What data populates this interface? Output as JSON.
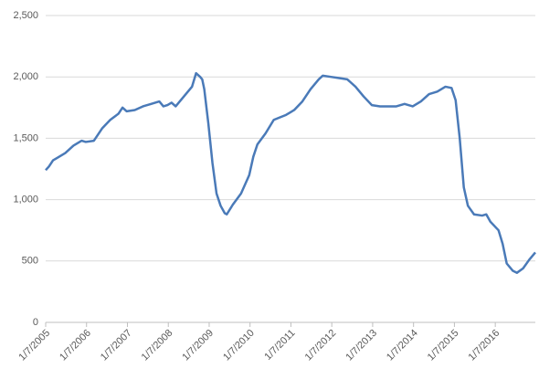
{
  "chart_data": {
    "type": "line",
    "color": "#4a7ab8",
    "grid": true,
    "x": [
      2005.02,
      2005.1,
      2005.2,
      2005.3,
      2005.5,
      2005.7,
      2005.9,
      2006.0,
      2006.2,
      2006.4,
      2006.6,
      2006.8,
      2006.9,
      2007.0,
      2007.2,
      2007.4,
      2007.6,
      2007.8,
      2007.9,
      2008.0,
      2008.1,
      2008.2,
      2008.4,
      2008.6,
      2008.7,
      2008.8,
      2008.85,
      2008.9,
      2009.0,
      2009.1,
      2009.2,
      2009.3,
      2009.4,
      2009.45,
      2009.6,
      2009.8,
      2010.0,
      2010.1,
      2010.2,
      2010.4,
      2010.6,
      2010.9,
      2011.0,
      2011.1,
      2011.3,
      2011.5,
      2011.7,
      2011.8,
      2012.0,
      2012.2,
      2012.4,
      2012.6,
      2012.8,
      2013.0,
      2013.2,
      2013.4,
      2013.6,
      2013.8,
      2014.0,
      2014.2,
      2014.4,
      2014.6,
      2014.8,
      2014.95,
      2015.05,
      2015.15,
      2015.25,
      2015.35,
      2015.5,
      2015.7,
      2015.8,
      2015.9,
      2016.1,
      2016.2,
      2016.3,
      2016.45,
      2016.55,
      2016.7,
      2016.85,
      2017.0
    ],
    "values": [
      1240,
      1270,
      1320,
      1340,
      1380,
      1440,
      1480,
      1470,
      1480,
      1580,
      1650,
      1700,
      1750,
      1720,
      1730,
      1760,
      1780,
      1800,
      1760,
      1770,
      1790,
      1760,
      1840,
      1920,
      2030,
      2000,
      1980,
      1900,
      1620,
      1300,
      1050,
      950,
      890,
      880,
      960,
      1050,
      1200,
      1350,
      1450,
      1540,
      1650,
      1690,
      1710,
      1730,
      1800,
      1900,
      1980,
      2010,
      2000,
      1990,
      1980,
      1920,
      1840,
      1770,
      1760,
      1760,
      1760,
      1780,
      1760,
      1800,
      1860,
      1880,
      1920,
      1910,
      1810,
      1500,
      1100,
      950,
      880,
      870,
      880,
      820,
      750,
      640,
      480,
      420,
      404,
      440,
      510,
      570
    ],
    "xlim": [
      2005.02,
      2017.0
    ],
    "xticks": [
      {
        "value": 2005.02,
        "label": "1/7/2005"
      },
      {
        "value": 2006.02,
        "label": "1/7/2006"
      },
      {
        "value": 2007.02,
        "label": "1/7/2007"
      },
      {
        "value": 2008.02,
        "label": "1/7/2008"
      },
      {
        "value": 2009.02,
        "label": "1/7/2009"
      },
      {
        "value": 2010.02,
        "label": "1/7/2010"
      },
      {
        "value": 2011.02,
        "label": "1/7/2011"
      },
      {
        "value": 2012.02,
        "label": "1/7/2012"
      },
      {
        "value": 2013.02,
        "label": "1/7/2013"
      },
      {
        "value": 2014.02,
        "label": "1/7/2014"
      },
      {
        "value": 2015.02,
        "label": "1/7/2015"
      },
      {
        "value": 2016.02,
        "label": "1/7/2016"
      }
    ],
    "ylim": [
      0,
      2500
    ],
    "yticks": [
      0,
      500,
      {
        "value": 1000,
        "label": "1,000"
      },
      {
        "value": 1500,
        "label": "1,500"
      },
      {
        "value": 2000,
        "label": "2,000"
      },
      {
        "value": 2500,
        "label": "2,500"
      }
    ]
  }
}
